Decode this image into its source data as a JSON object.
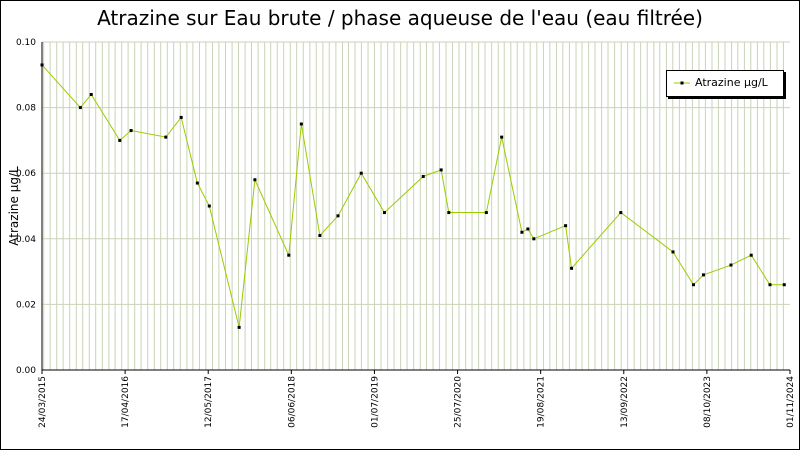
{
  "chart_data": {
    "type": "line",
    "title": "Atrazine sur Eau brute / phase aqueuse de l'eau (eau filtrée)",
    "ylabel": "Atrazine µg/L",
    "xlabel": "",
    "ylim": [
      0,
      0.1
    ],
    "xlim": [
      "2015-03-24",
      "2024-11-01"
    ],
    "grid": true,
    "legend_position": "top-right",
    "y_ticks": [
      "0.00",
      "0.02",
      "0.04",
      "0.06",
      "0.08",
      "0.10"
    ],
    "x_ticks": [
      {
        "date": "2015-03-24",
        "label": "24/03/2015"
      },
      {
        "date": "2016-04-17",
        "label": "17/04/2016"
      },
      {
        "date": "2017-05-12",
        "label": "12/05/2017"
      },
      {
        "date": "2018-06-06",
        "label": "06/06/2018"
      },
      {
        "date": "2019-07-01",
        "label": "01/07/2019"
      },
      {
        "date": "2020-07-25",
        "label": "25/07/2020"
      },
      {
        "date": "2021-08-19",
        "label": "19/08/2021"
      },
      {
        "date": "2022-09-13",
        "label": "13/09/2022"
      },
      {
        "date": "2023-10-08",
        "label": "08/10/2023"
      },
      {
        "date": "2024-11-01",
        "label": "01/11/2024"
      }
    ],
    "series": [
      {
        "name": "Atrazine µg/L",
        "color": "#99cc00",
        "x": [
          "2015-03-24",
          "2015-09-20",
          "2015-11-10",
          "2016-03-23",
          "2016-05-15",
          "2016-10-25",
          "2017-01-05",
          "2017-03-22",
          "2017-05-17",
          "2017-10-04",
          "2017-12-17",
          "2018-05-25",
          "2018-07-23",
          "2018-10-18",
          "2019-01-11",
          "2019-04-30",
          "2019-08-17",
          "2020-02-15",
          "2020-05-09",
          "2020-06-14",
          "2020-12-07",
          "2021-02-17",
          "2021-05-23",
          "2021-06-20",
          "2021-07-18",
          "2021-12-14",
          "2022-01-11",
          "2022-08-30",
          "2023-05-02",
          "2023-08-06",
          "2023-09-22",
          "2024-01-29",
          "2024-05-03",
          "2024-07-30",
          "2024-10-05"
        ],
        "values": [
          0.093,
          0.08,
          0.084,
          0.07,
          0.073,
          0.071,
          0.077,
          0.057,
          0.05,
          0.013,
          0.058,
          0.035,
          0.075,
          0.041,
          0.047,
          0.06,
          0.048,
          0.059,
          0.061,
          0.048,
          0.048,
          0.071,
          0.042,
          0.043,
          0.04,
          0.044,
          0.031,
          0.048,
          0.036,
          0.026,
          0.029,
          0.032,
          0.035,
          0.026,
          0.026
        ]
      }
    ]
  }
}
